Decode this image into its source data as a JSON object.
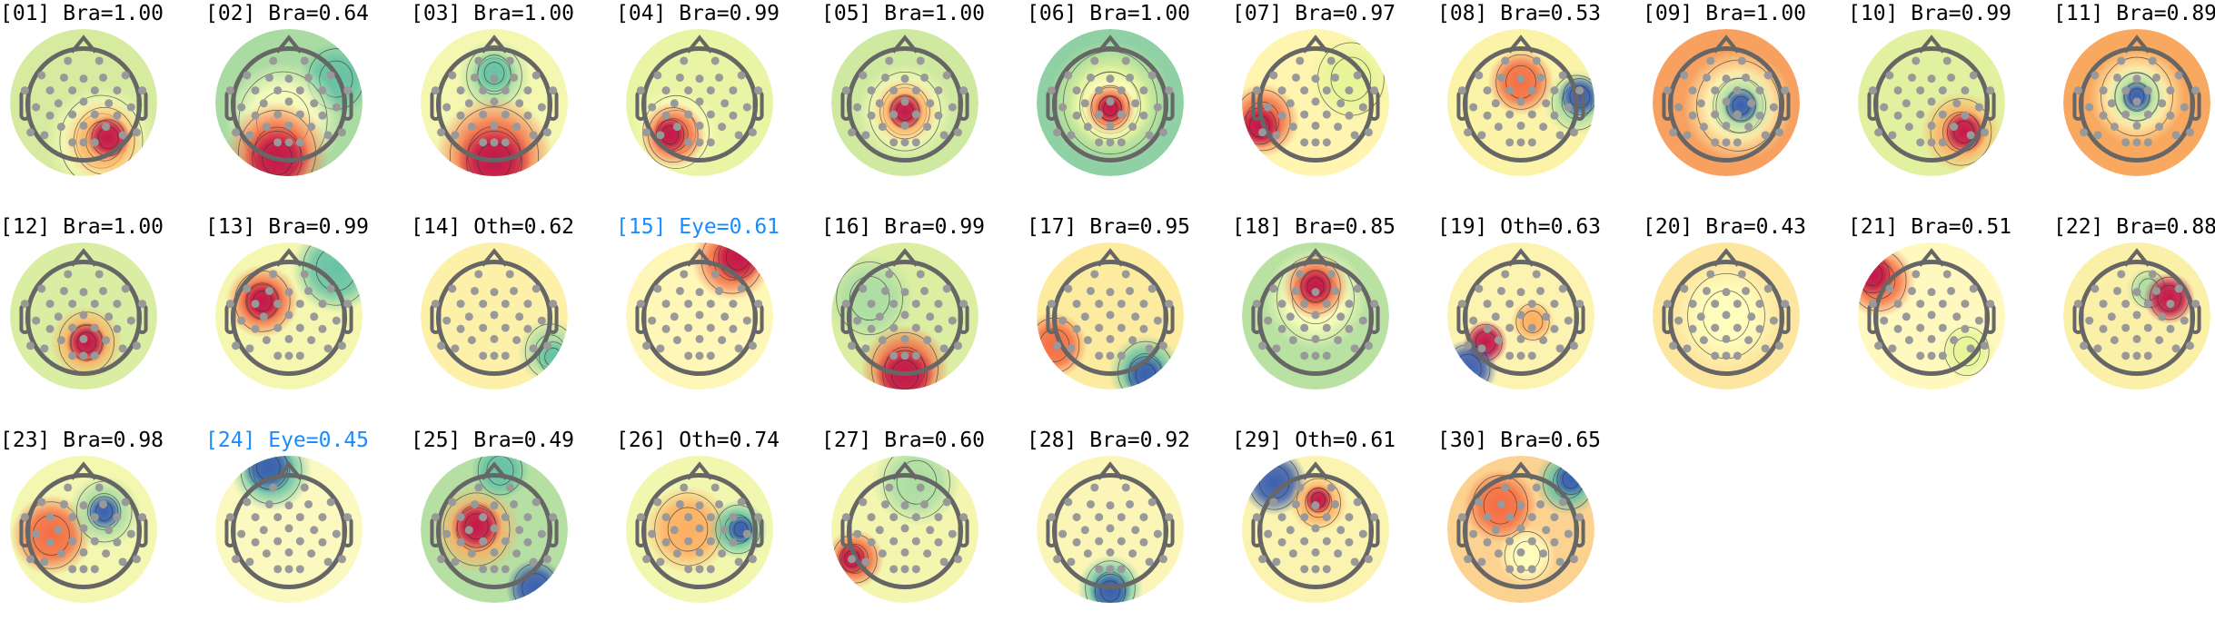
{
  "colors": {
    "brain_label": "#000000",
    "eye_label": "#1a8cff",
    "head_outline": "#666666",
    "electrode": "#999999"
  },
  "colormap": [
    "#3b5fb0",
    "#66c2a5",
    "#abdda4",
    "#e6f598",
    "#ffffbf",
    "#fee08b",
    "#fdae61",
    "#f46d43",
    "#c2184a"
  ],
  "components": [
    {
      "label": "[01] Bra=1.00",
      "type": "Bra",
      "score": 1.0
    },
    {
      "label": "[02] Bra=0.64",
      "type": "Bra",
      "score": 0.64
    },
    {
      "label": "[03] Bra=1.00",
      "type": "Bra",
      "score": 1.0
    },
    {
      "label": "[04] Bra=0.99",
      "type": "Bra",
      "score": 0.99
    },
    {
      "label": "[05] Bra=1.00",
      "type": "Bra",
      "score": 1.0
    },
    {
      "label": "[06] Bra=1.00",
      "type": "Bra",
      "score": 1.0
    },
    {
      "label": "[07] Bra=0.97",
      "type": "Bra",
      "score": 0.97
    },
    {
      "label": "[08] Bra=0.53",
      "type": "Bra",
      "score": 0.53
    },
    {
      "label": "[09] Bra=1.00",
      "type": "Bra",
      "score": 1.0
    },
    {
      "label": "[10] Bra=0.99",
      "type": "Bra",
      "score": 0.99
    },
    {
      "label": "[11] Bra=0.89",
      "type": "Bra",
      "score": 0.89
    },
    {
      "label": "[12] Bra=1.00",
      "type": "Bra",
      "score": 1.0
    },
    {
      "label": "[13] Bra=0.99",
      "type": "Bra",
      "score": 0.99
    },
    {
      "label": "[14] Oth=0.62",
      "type": "Oth",
      "score": 0.62
    },
    {
      "label": "[15] Eye=0.61",
      "type": "Eye",
      "score": 0.61
    },
    {
      "label": "[16] Bra=0.99",
      "type": "Bra",
      "score": 0.99
    },
    {
      "label": "[17] Bra=0.95",
      "type": "Bra",
      "score": 0.95
    },
    {
      "label": "[18] Bra=0.85",
      "type": "Bra",
      "score": 0.85
    },
    {
      "label": "[19] Oth=0.63",
      "type": "Oth",
      "score": 0.63
    },
    {
      "label": "[20] Bra=0.43",
      "type": "Bra",
      "score": 0.43
    },
    {
      "label": "[21] Bra=0.51",
      "type": "Bra",
      "score": 0.51
    },
    {
      "label": "[22] Bra=0.88",
      "type": "Bra",
      "score": 0.88
    },
    {
      "label": "[23] Bra=0.98",
      "type": "Bra",
      "score": 0.98
    },
    {
      "label": "[24] Eye=0.45",
      "type": "Eye",
      "score": 0.45
    },
    {
      "label": "[25] Bra=0.49",
      "type": "Bra",
      "score": 0.49
    },
    {
      "label": "[26] Oth=0.74",
      "type": "Oth",
      "score": 0.74
    },
    {
      "label": "[27] Bra=0.60",
      "type": "Bra",
      "score": 0.6
    },
    {
      "label": "[28] Bra=0.92",
      "type": "Bra",
      "score": 0.92
    },
    {
      "label": "[29] Oth=0.61",
      "type": "Oth",
      "score": 0.61
    },
    {
      "label": "[30] Bra=0.65",
      "type": "Bra",
      "score": 0.65
    }
  ]
}
